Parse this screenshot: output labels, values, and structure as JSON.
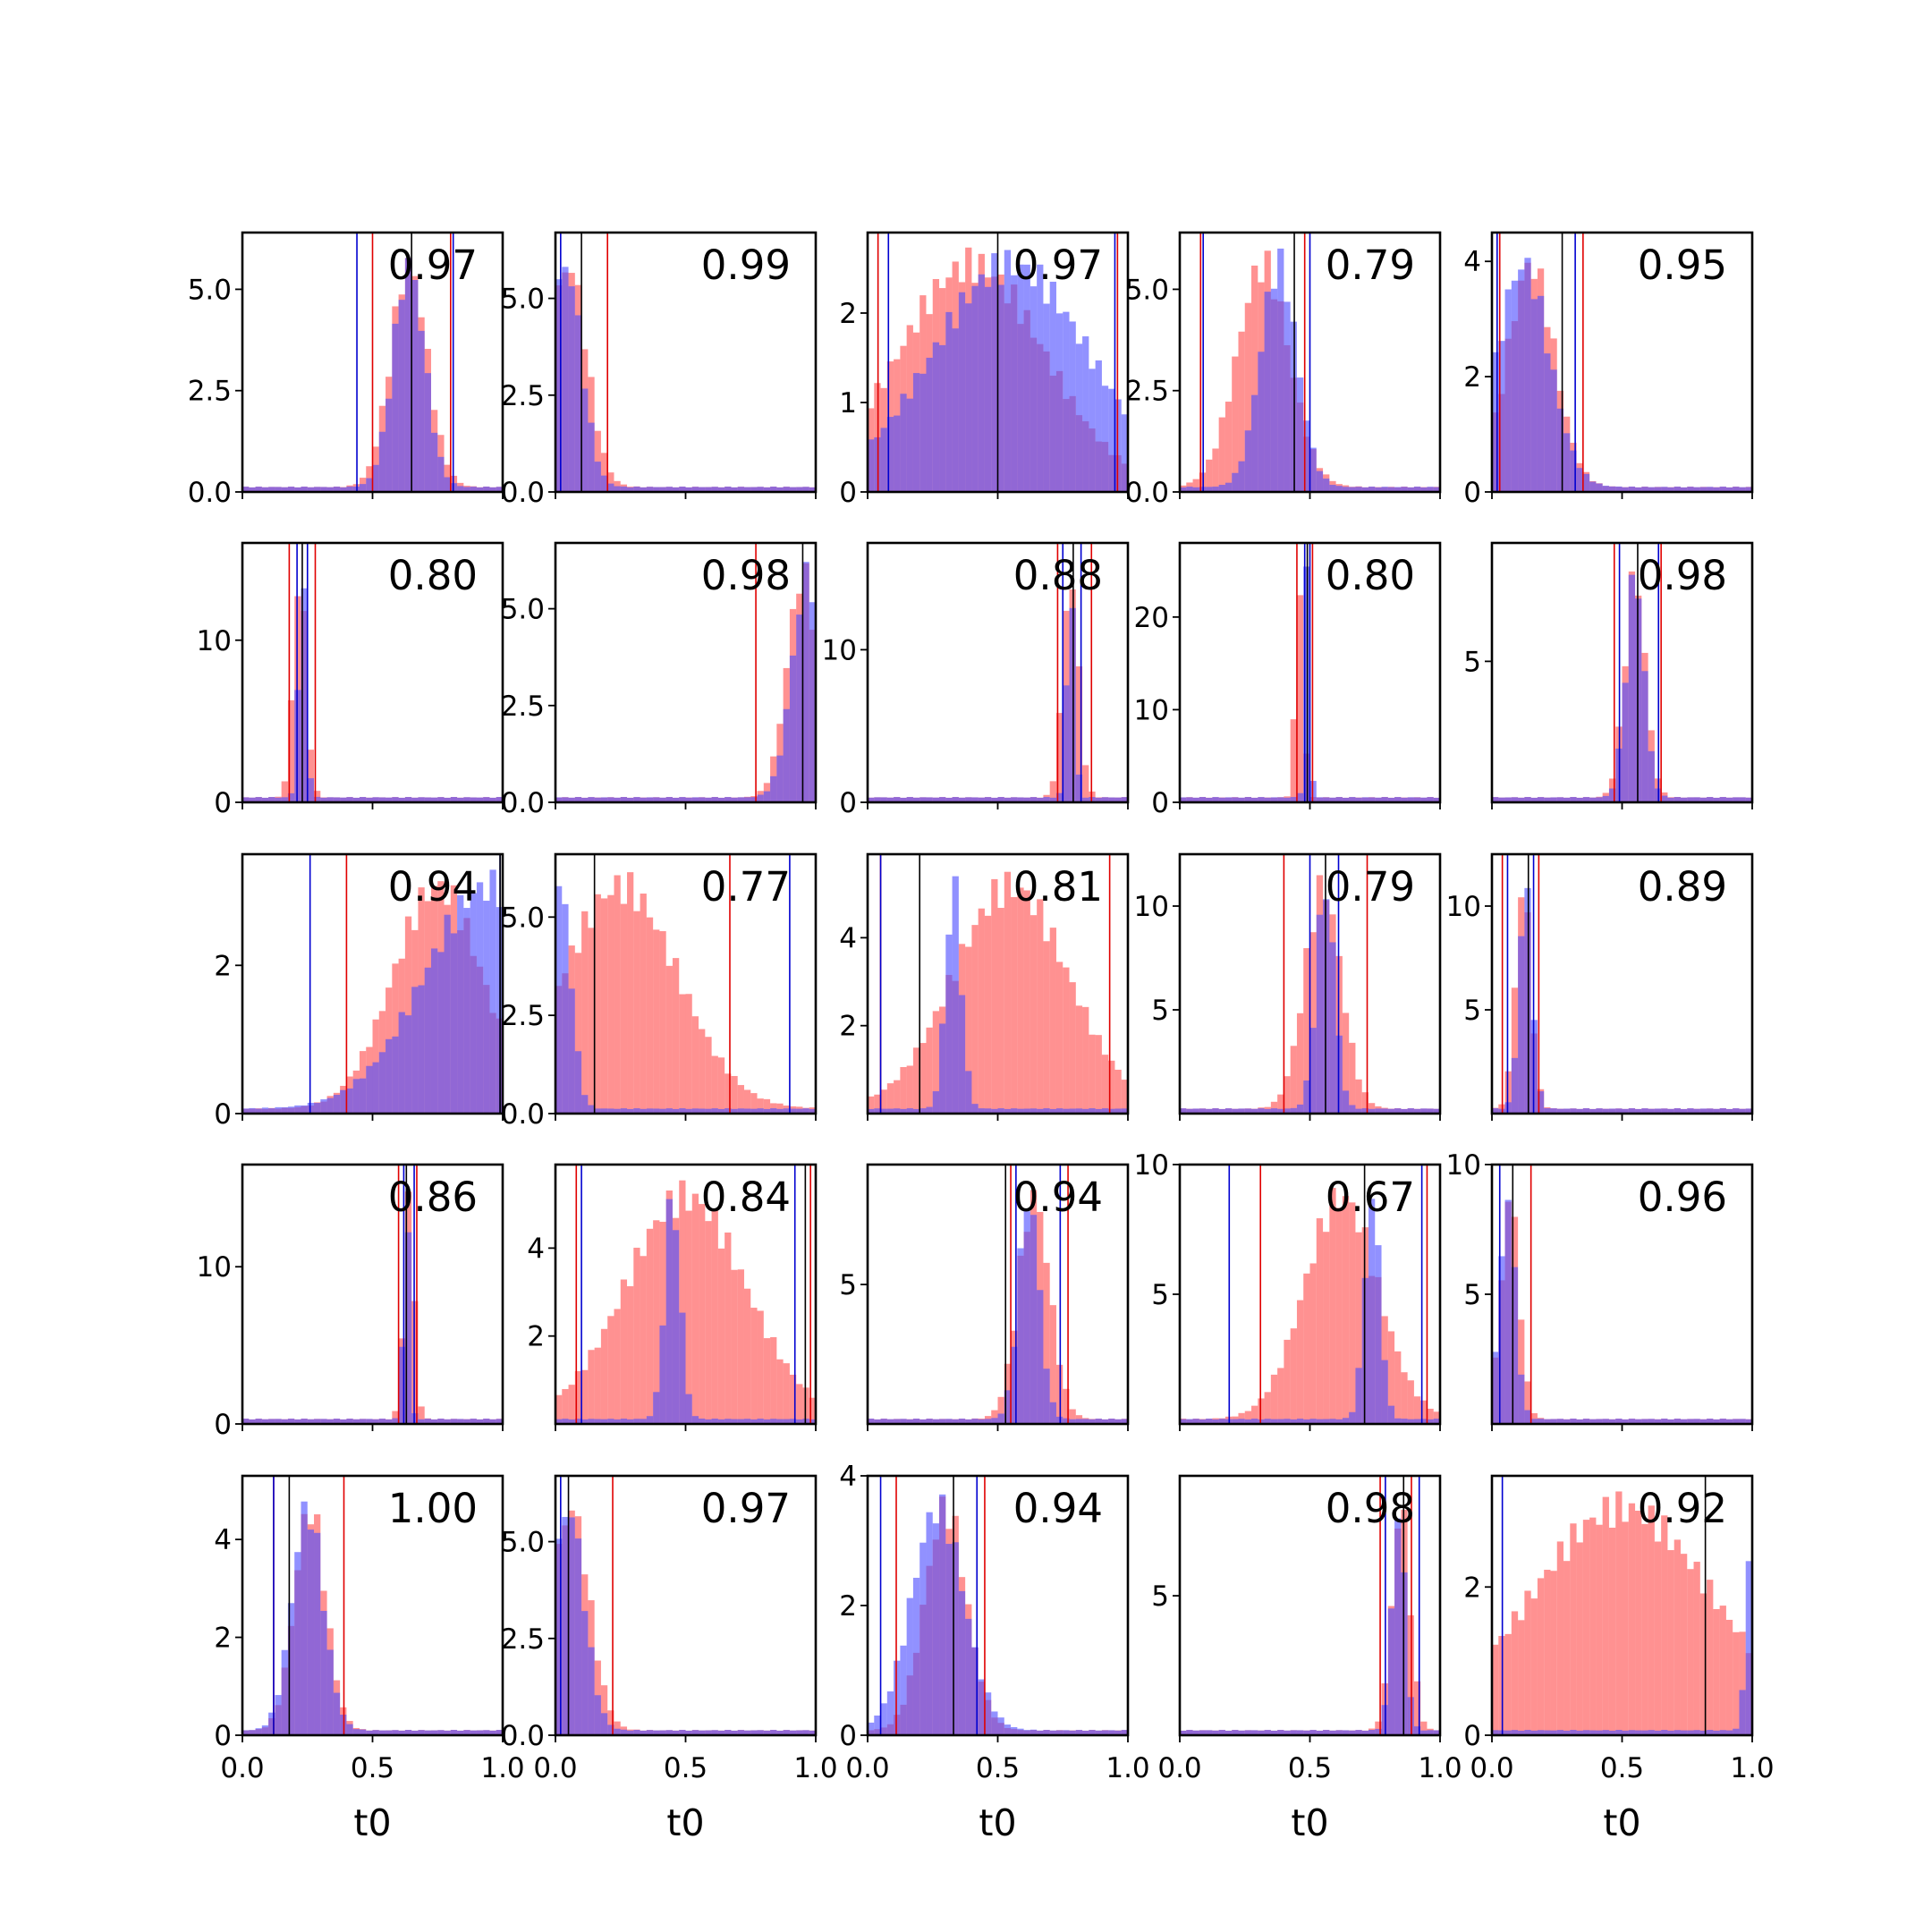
{
  "chart_data": {
    "type": "histogram-grid",
    "rows": 5,
    "cols": 5,
    "xlim": [
      0,
      1
    ],
    "xticks": [
      "0.0",
      "0.5",
      "1.0"
    ],
    "xlabel": "t0",
    "colors": {
      "series_red": "#ff4d4d",
      "series_blue": "#4d4dff",
      "overlap": "#8040c0",
      "line_red": "#e00000",
      "line_blue": "#0000d0",
      "line_black": "#000000"
    },
    "series": [
      {
        "color": "red"
      },
      {
        "color": "blue"
      }
    ],
    "panels": [
      {
        "label": "0.97",
        "ymax": 6.4,
        "yticks": [
          "0.0",
          "2.5",
          "5.0"
        ],
        "ytick_values": [
          0,
          2.5,
          5.0
        ],
        "red": {
          "center": 0.64,
          "width": 0.07
        },
        "blue": {
          "center": 0.64,
          "width": 0.06
        },
        "vlines": {
          "red": [
            0.5,
            0.8
          ],
          "blue": [
            0.44,
            0.81
          ],
          "black": [
            0.65
          ]
        }
      },
      {
        "label": "0.99",
        "ymax": 6.7,
        "yticks": [
          "0.0",
          "2.5",
          "5.0"
        ],
        "ytick_values": [
          0,
          2.5,
          5.0
        ],
        "red": {
          "center": 0.05,
          "width": 0.07
        },
        "blue": {
          "center": 0.04,
          "width": 0.06
        },
        "vlines": {
          "red": [
            0.2
          ],
          "blue": [
            0.02
          ],
          "black": [
            0.1
          ]
        }
      },
      {
        "label": "0.97",
        "ymax": 2.9,
        "yticks": [
          "0",
          "1",
          "2"
        ],
        "ytick_values": [
          0,
          1,
          2
        ],
        "red": {
          "center": 0.4,
          "width": 0.28
        },
        "blue": {
          "center": 0.55,
          "width": 0.3
        },
        "vlines": {
          "red": [
            0.04,
            0.96
          ],
          "blue": [
            0.08,
            0.95
          ],
          "black": [
            0.5
          ]
        }
      },
      {
        "label": "0.79",
        "ymax": 6.4,
        "yticks": [
          "0.0",
          "2.5",
          "5.0"
        ],
        "ytick_values": [
          0,
          2.5,
          5.0
        ],
        "red": {
          "center": 0.32,
          "width": 0.1
        },
        "blue": {
          "center": 0.38,
          "width": 0.07
        },
        "vlines": {
          "red": [
            0.08,
            0.48
          ],
          "blue": [
            0.09,
            0.5
          ],
          "black": [
            0.44
          ]
        }
      },
      {
        "label": "0.95",
        "ymax": 4.5,
        "yticks": [
          "0",
          "2",
          "4"
        ],
        "ytick_values": [
          0,
          2,
          4
        ],
        "red": {
          "center": 0.15,
          "width": 0.09
        },
        "blue": {
          "center": 0.12,
          "width": 0.1
        },
        "vlines": {
          "red": [
            0.03,
            0.35
          ],
          "blue": [
            0.02,
            0.32
          ],
          "black": [
            0.27
          ]
        }
      },
      {
        "label": "0.80",
        "ymax": 16,
        "yticks": [
          "0",
          "10"
        ],
        "ytick_values": [
          0,
          10
        ],
        "red": {
          "center": 0.22,
          "width": 0.025
        },
        "blue": {
          "center": 0.23,
          "width": 0.015
        },
        "vlines": {
          "red": [
            0.18,
            0.28
          ],
          "blue": [
            0.21,
            0.25
          ],
          "black": [
            0.23
          ]
        }
      },
      {
        "label": "0.98",
        "ymax": 6.7,
        "yticks": [
          "0.0",
          "2.5",
          "5.0"
        ],
        "ytick_values": [
          0,
          2.5,
          5.0
        ],
        "red": {
          "center": 0.95,
          "width": 0.06
        },
        "blue": {
          "center": 0.97,
          "width": 0.06
        },
        "vlines": {
          "red": [
            0.77
          ],
          "blue": [
            1.0
          ],
          "black": [
            0.95
          ]
        }
      },
      {
        "label": "0.88",
        "ymax": 17,
        "yticks": [
          "0",
          "10"
        ],
        "ytick_values": [
          0,
          10
        ],
        "red": {
          "center": 0.78,
          "width": 0.03
        },
        "blue": {
          "center": 0.78,
          "width": 0.015
        },
        "vlines": {
          "red": [
            0.73,
            0.86
          ],
          "blue": [
            0.75,
            0.82
          ],
          "black": [
            0.79
          ]
        }
      },
      {
        "label": "0.80",
        "ymax": 28,
        "yticks": [
          "0",
          "10",
          "20"
        ],
        "ytick_values": [
          0,
          10,
          20
        ],
        "red": {
          "center": 0.46,
          "width": 0.015
        },
        "blue": {
          "center": 0.49,
          "width": 0.01
        },
        "vlines": {
          "red": [
            0.45,
            0.51
          ],
          "blue": [
            0.48,
            0.5
          ],
          "black": [
            0.49
          ]
        }
      },
      {
        "label": "0.98",
        "ymax": 9.2,
        "yticks": [
          "5"
        ],
        "ytick_values": [
          5
        ],
        "red": {
          "center": 0.55,
          "width": 0.04
        },
        "blue": {
          "center": 0.55,
          "width": 0.035
        },
        "vlines": {
          "red": [
            0.47,
            0.65
          ],
          "blue": [
            0.49,
            0.64
          ],
          "black": [
            0.56
          ]
        }
      },
      {
        "label": "0.94",
        "ymax": 3.5,
        "yticks": [
          "0",
          "2"
        ],
        "ytick_values": [
          0,
          2
        ],
        "red": {
          "center": 0.75,
          "width": 0.17
        },
        "blue": {
          "center": 0.95,
          "width": 0.25
        },
        "vlines": {
          "red": [
            0.4,
            1.0
          ],
          "blue": [
            0.26,
            0.99
          ],
          "black": [
            0.99
          ]
        }
      },
      {
        "label": "0.77",
        "ymax": 6.6,
        "yticks": [
          "0.0",
          "2.5",
          "5.0"
        ],
        "ytick_values": [
          0,
          2.5,
          5.0
        ],
        "red": {
          "center": 0.25,
          "width": 0.22
        },
        "blue": {
          "center": 0.02,
          "width": 0.04
        },
        "vlines": {
          "red": [
            0.67
          ],
          "blue": [
            0.9
          ],
          "black": [
            0.15
          ]
        }
      },
      {
        "label": "0.81",
        "ymax": 5.9,
        "yticks": [
          "2",
          "4"
        ],
        "ytick_values": [
          2,
          4
        ],
        "red": {
          "center": 0.55,
          "width": 0.22
        },
        "blue": {
          "center": 0.33,
          "width": 0.03
        },
        "vlines": {
          "red": [
            0.05,
            0.93
          ],
          "blue": [
            0.05
          ],
          "black": [
            0.2
          ]
        }
      },
      {
        "label": "0.79",
        "ymax": 12.5,
        "yticks": [
          "5",
          "10"
        ],
        "ytick_values": [
          5,
          10
        ],
        "red": {
          "center": 0.55,
          "width": 0.07
        },
        "blue": {
          "center": 0.56,
          "width": 0.035
        },
        "vlines": {
          "red": [
            0.4,
            0.72
          ],
          "blue": [
            0.5,
            0.61
          ],
          "black": [
            0.56
          ]
        }
      },
      {
        "label": "0.89",
        "ymax": 12.5,
        "yticks": [
          "5",
          "10"
        ],
        "ytick_values": [
          5,
          10
        ],
        "red": {
          "center": 0.12,
          "width": 0.03
        },
        "blue": {
          "center": 0.13,
          "width": 0.025
        },
        "vlines": {
          "red": [
            0.04,
            0.18
          ],
          "blue": [
            0.06,
            0.16
          ],
          "black": [
            0.14
          ]
        }
      },
      {
        "label": "0.86",
        "ymax": 16.5,
        "yticks": [
          "0",
          "10"
        ],
        "ytick_values": [
          0,
          10
        ],
        "red": {
          "center": 0.64,
          "width": 0.02
        },
        "blue": {
          "center": 0.63,
          "width": 0.012
        },
        "vlines": {
          "red": [
            0.6,
            0.67
          ],
          "blue": [
            0.62,
            0.66
          ],
          "black": [
            0.63
          ]
        }
      },
      {
        "label": "0.84",
        "ymax": 5.9,
        "yticks": [
          "2",
          "4"
        ],
        "ytick_values": [
          2,
          4
        ],
        "red": {
          "center": 0.5,
          "width": 0.23
        },
        "blue": {
          "center": 0.45,
          "width": 0.03
        },
        "vlines": {
          "red": [
            0.08,
            0.98
          ],
          "blue": [
            0.1,
            0.92
          ],
          "black": [
            0.96
          ]
        }
      },
      {
        "label": "0.94",
        "ymax": 9.3,
        "yticks": [
          "5"
        ],
        "ytick_values": [
          5
        ],
        "red": {
          "center": 0.64,
          "width": 0.06
        },
        "blue": {
          "center": 0.62,
          "width": 0.04
        },
        "vlines": {
          "red": [
            0.55,
            0.77
          ],
          "blue": [
            0.57,
            0.74
          ],
          "black": [
            0.53
          ]
        }
      },
      {
        "label": "0.67",
        "ymax": 10,
        "yticks": [
          "5",
          "10"
        ],
        "ytick_values": [
          5,
          10
        ],
        "red": {
          "center": 0.62,
          "width": 0.14
        },
        "blue": {
          "center": 0.74,
          "width": 0.03
        },
        "vlines": {
          "red": [
            0.31,
            0.95
          ],
          "blue": [
            0.19,
            0.93
          ],
          "black": [
            0.71
          ]
        }
      },
      {
        "label": "0.96",
        "ymax": 10,
        "yticks": [
          "5",
          "10"
        ],
        "ytick_values": [
          5,
          10
        ],
        "red": {
          "center": 0.07,
          "width": 0.035
        },
        "blue": {
          "center": 0.06,
          "width": 0.03
        },
        "vlines": {
          "red": [
            0.15
          ],
          "blue": [
            0.03
          ],
          "black": [
            0.08
          ]
        }
      },
      {
        "label": "1.00",
        "ymax": 5.3,
        "yticks": [
          "0",
          "2",
          "4"
        ],
        "ytick_values": [
          0,
          2,
          4
        ],
        "red": {
          "center": 0.26,
          "width": 0.06
        },
        "blue": {
          "center": 0.25,
          "width": 0.06
        },
        "vlines": {
          "red": [
            0.12,
            0.39
          ],
          "blue": [
            0.12
          ],
          "black": [
            0.18
          ]
        }
      },
      {
        "label": "0.97",
        "ymax": 6.7,
        "yticks": [
          "0.0",
          "2.5",
          "5.0"
        ],
        "ytick_values": [
          0,
          2.5,
          5.0
        ],
        "red": {
          "center": 0.06,
          "width": 0.07
        },
        "blue": {
          "center": 0.05,
          "width": 0.06
        },
        "vlines": {
          "red": [
            0.22
          ],
          "blue": [
            0.02
          ],
          "black": [
            0.05
          ]
        }
      },
      {
        "label": "0.94",
        "ymax": 4.0,
        "yticks": [
          "0",
          "2",
          "4"
        ],
        "ytick_values": [
          0,
          2,
          4
        ],
        "red": {
          "center": 0.3,
          "width": 0.08
        },
        "blue": {
          "center": 0.27,
          "width": 0.1
        },
        "vlines": {
          "red": [
            0.11,
            0.45
          ],
          "blue": [
            0.05,
            0.42
          ],
          "black": [
            0.33
          ]
        }
      },
      {
        "label": "0.98",
        "ymax": 9.3,
        "yticks": [
          "5"
        ],
        "ytick_values": [
          5
        ],
        "red": {
          "center": 0.85,
          "width": 0.035
        },
        "blue": {
          "center": 0.84,
          "width": 0.025
        },
        "vlines": {
          "red": [
            0.77,
            0.89
          ],
          "blue": [
            0.79,
            0.92
          ],
          "black": [
            0.86
          ]
        }
      },
      {
        "label": "0.92",
        "ymax": 3.5,
        "yticks": [
          "0",
          "2"
        ],
        "ytick_values": [
          0,
          2
        ],
        "red": {
          "center": 0.5,
          "width": 0.35
        },
        "blue": {
          "center": 1.0,
          "width": 0.02
        },
        "vlines": {
          "red": [],
          "blue": [
            0.04,
            1.0
          ],
          "black": [
            0.82
          ]
        }
      }
    ]
  }
}
